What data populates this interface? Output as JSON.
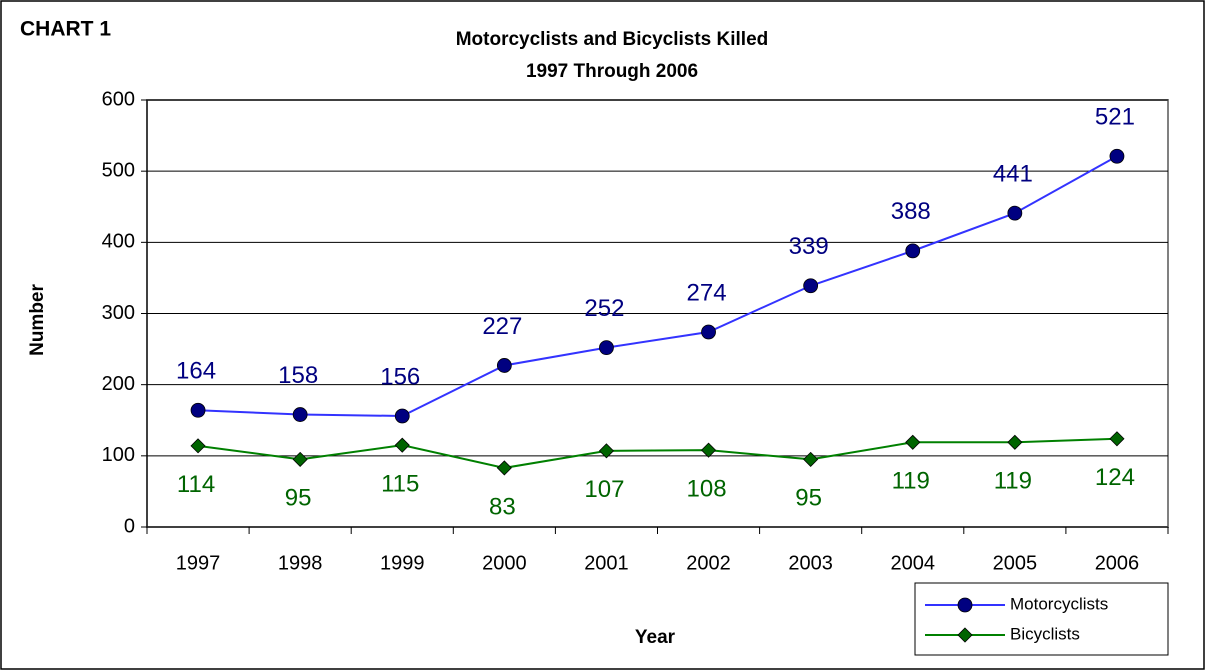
{
  "chart_data": {
    "type": "line",
    "label": "CHART 1",
    "title": "Motorcyclists and Bicyclists Killed",
    "subtitle": "1997 Through 2006",
    "x_label": "Year",
    "y_label": "Number",
    "categories": [
      "1997",
      "1998",
      "1999",
      "2000",
      "2001",
      "2002",
      "2003",
      "2004",
      "2005",
      "2006"
    ],
    "series": [
      {
        "name": "Motorcyclists",
        "color": "#000080",
        "line_color": "#3333ff",
        "marker": "circle",
        "label_position": "above",
        "values": [
          164,
          158,
          156,
          227,
          252,
          274,
          339,
          388,
          441,
          521
        ]
      },
      {
        "name": "Bicyclists",
        "color": "#006400",
        "line_color": "#008000",
        "marker": "diamond",
        "label_position": "below",
        "values": [
          114,
          95,
          115,
          83,
          107,
          108,
          95,
          119,
          119,
          124
        ]
      }
    ],
    "ylim": [
      0,
      600
    ],
    "yticks": [
      0,
      100,
      200,
      300,
      400,
      500,
      600
    ],
    "grid": true
  }
}
